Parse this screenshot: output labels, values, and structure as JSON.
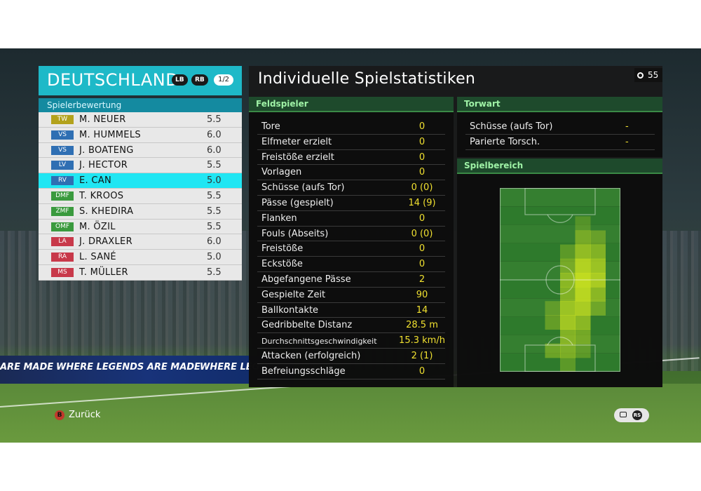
{
  "team": {
    "name": "DEUTSCHLAND",
    "lb": "LB",
    "rb": "RB",
    "page": "1/2"
  },
  "rating_title": "Spielerbewertung",
  "players": [
    {
      "pos": "TW",
      "name": "M. NEUER",
      "rating": "5.5",
      "color": "#b3a21c"
    },
    {
      "pos": "VS",
      "name": "M. HUMMELS",
      "rating": "6.0",
      "color": "#2f6fb3"
    },
    {
      "pos": "VS",
      "name": "J. BOATENG",
      "rating": "6.0",
      "color": "#2f6fb3"
    },
    {
      "pos": "LV",
      "name": "J. HECTOR",
      "rating": "5.5",
      "color": "#2f6fb3"
    },
    {
      "pos": "RV",
      "name": "E. CAN",
      "rating": "5.0",
      "color": "#2f6fb3"
    },
    {
      "pos": "DMF",
      "name": "T. KROOS",
      "rating": "5.5",
      "color": "#3a9a3e"
    },
    {
      "pos": "ZMF",
      "name": "S. KHEDIRA",
      "rating": "5.5",
      "color": "#3a9a3e"
    },
    {
      "pos": "OMF",
      "name": "M. ÖZIL",
      "rating": "5.5",
      "color": "#3a9a3e"
    },
    {
      "pos": "LA",
      "name": "J. DRAXLER",
      "rating": "6.0",
      "color": "#c8394a"
    },
    {
      "pos": "RA",
      "name": "L. SANÉ",
      "rating": "5.0",
      "color": "#c8394a"
    },
    {
      "pos": "MS",
      "name": "T. MÜLLER",
      "rating": "5.5",
      "color": "#c8394a"
    }
  ],
  "selected_index": 4,
  "main_title": "Individuelle Spielstatistiken",
  "timer": "55",
  "field_title": "Feldspieler",
  "field_stats": [
    {
      "label": "Tore",
      "value": "0"
    },
    {
      "label": "Elfmeter erzielt",
      "value": "0"
    },
    {
      "label": "Freistöße erzielt",
      "value": "0"
    },
    {
      "label": "Vorlagen",
      "value": "0"
    },
    {
      "label": "Schüsse (aufs Tor)",
      "value": "0 (0)"
    },
    {
      "label": "Pässe (gespielt)",
      "value": "14 (9)"
    },
    {
      "label": "Flanken",
      "value": "0"
    },
    {
      "label": "Fouls (Abseits)",
      "value": "0 (0)"
    },
    {
      "label": "Freistöße",
      "value": "0"
    },
    {
      "label": "Eckstöße",
      "value": "0"
    },
    {
      "label": "Abgefangene Pässe",
      "value": "2"
    },
    {
      "label": "Gespielte Zeit",
      "value": "90"
    },
    {
      "label": "Ballkontakte",
      "value": "14"
    },
    {
      "label": "Gedribbelte Distanz",
      "value": "28.5 m"
    },
    {
      "label": "Durchschnittsgeschwindigkeit",
      "value": "15.3 km/h"
    },
    {
      "label": "Attacken (erfolgreich)",
      "value": "2 (1)"
    },
    {
      "label": "Befreiungsschläge",
      "value": "0"
    }
  ],
  "gk_title": "Torwart",
  "gk_stats": [
    {
      "label": "Schüsse (aufs Tor)",
      "value": "-"
    },
    {
      "label": "Parierte Torsch.",
      "value": "-"
    }
  ],
  "area_title": "Spielbereich",
  "back": {
    "key": "B",
    "label": "Zurück"
  },
  "rs_label": "RS",
  "ads": {
    "text1": "ARE MADE",
    "text2": "WHERE LEGENDS ARE MADE",
    "text3": "WHERE LEG"
  },
  "colors": {
    "accent": "#1eb9c8",
    "selected": "#20e6f3",
    "stat_value": "#f0e030",
    "section_green": "#9ff2a6"
  }
}
